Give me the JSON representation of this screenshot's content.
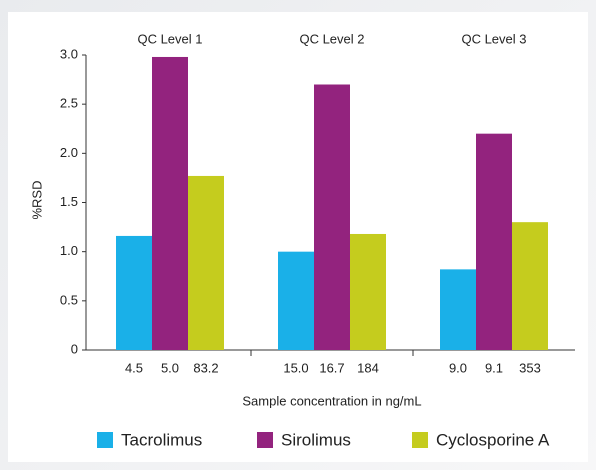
{
  "chart_data": {
    "type": "bar",
    "categories": [
      "QC Level 1",
      "QC Level 2",
      "QC Level 3"
    ],
    "series": [
      {
        "name": "Tacrolimus",
        "color": "#1ab0e8",
        "values": [
          1.16,
          1.0,
          0.82
        ],
        "bar_labels": [
          "4.5",
          "15.0",
          "9.0"
        ]
      },
      {
        "name": "Sirolimus",
        "color": "#93237e",
        "values": [
          2.98,
          2.7,
          2.2
        ],
        "bar_labels": [
          "5.0",
          "16.7",
          "9.1"
        ]
      },
      {
        "name": "Cyclosporine A",
        "color": "#c5cc1e",
        "values": [
          1.77,
          1.18,
          1.3
        ],
        "bar_labels": [
          "83.2",
          "184",
          "353"
        ]
      }
    ],
    "ylabel": "%RSD",
    "xlabel": "Sample concentration in ng/mL",
    "ylim": [
      0,
      3
    ],
    "yticks": [
      0,
      0.5,
      {
        "value": 1,
        "label": "1.0"
      },
      1.5,
      {
        "value": 2,
        "label": "2.0"
      },
      2.5,
      {
        "value": 3,
        "label": "3.0"
      }
    ],
    "legend": "bottom"
  }
}
